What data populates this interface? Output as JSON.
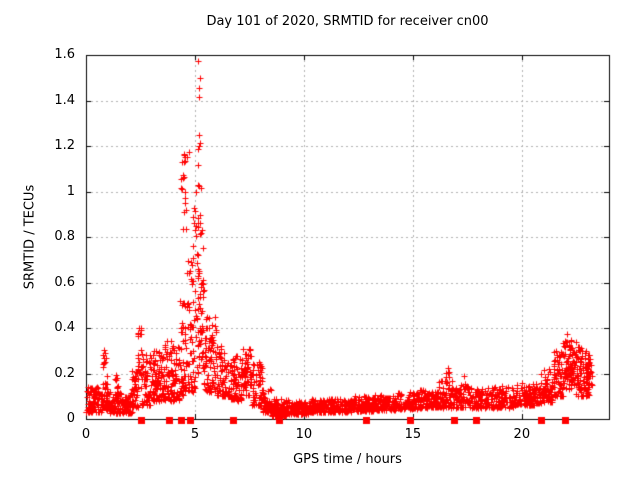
{
  "chart_data": {
    "type": "scatter",
    "title": "Day 101 of 2020, SRMTID for receiver cn00",
    "xlabel": "GPS time / hours",
    "ylabel": "SRMTID / TECUs",
    "xlim": [
      0,
      24
    ],
    "ylim": [
      0,
      1.6
    ],
    "xticks": [
      {
        "v": 0,
        "label": "0"
      },
      {
        "v": 5,
        "label": "5"
      },
      {
        "v": 10,
        "label": "10"
      },
      {
        "v": 15,
        "label": "15"
      },
      {
        "v": 20,
        "label": "20"
      }
    ],
    "yticks": [
      {
        "v": 0,
        "label": "0"
      },
      {
        "v": 0.2,
        "label": "0.2"
      },
      {
        "v": 0.4,
        "label": "0.4"
      },
      {
        "v": 0.6,
        "label": "0.6"
      },
      {
        "v": 0.8,
        "label": "0.8"
      },
      {
        "v": 1,
        "label": "1"
      },
      {
        "v": 1.2,
        "label": "1.2"
      },
      {
        "v": 1.4,
        "label": "1.4"
      },
      {
        "v": 1.6,
        "label": "1.6"
      }
    ],
    "grid": true,
    "legend": "none",
    "colors": {
      "marker": "#ff0000",
      "grid": "#b0b0b0",
      "axis": "#000000",
      "text": "#000000",
      "background": "#ffffff"
    },
    "series": [
      {
        "name": "SRMTID scatter",
        "marker": "plus",
        "marker_size": 7,
        "color": "#ff0000",
        "outlier_points": [
          [
            5.15,
            1.574
          ],
          [
            5.21,
            1.497
          ],
          [
            5.2,
            1.453
          ],
          [
            5.18,
            1.417
          ],
          [
            5.23,
            1.212
          ],
          [
            5.14,
            1.187
          ],
          [
            4.72,
            1.172
          ],
          [
            4.62,
            1.153
          ],
          [
            4.55,
            1.132
          ],
          [
            4.5,
            1.128
          ],
          [
            4.46,
            1.072
          ],
          [
            4.44,
            1.058
          ],
          [
            5.2,
            1.026
          ],
          [
            4.54,
            0.996
          ],
          [
            0.84,
            0.305
          ],
          [
            0.86,
            0.29
          ],
          [
            0.88,
            0.252
          ],
          [
            2.44,
            0.402
          ],
          [
            2.47,
            0.375
          ],
          [
            22.08,
            0.372
          ],
          [
            21.97,
            0.345
          ],
          [
            16.62,
            0.222
          ],
          [
            20.87,
            0.198
          ]
        ],
        "bands_format": "[hour_start, hour_end, y_min, y_max, point_count, bias_toward_min]",
        "bands": [
          [
            0.0,
            0.7,
            0.03,
            0.14,
            90,
            1.8
          ],
          [
            0.7,
            1.0,
            0.04,
            0.16,
            40,
            1.8
          ],
          [
            0.75,
            0.95,
            0.18,
            0.31,
            8,
            1.0
          ],
          [
            1.0,
            2.1,
            0.025,
            0.12,
            130,
            1.8
          ],
          [
            1.3,
            1.5,
            0.1,
            0.2,
            10,
            1.2
          ],
          [
            2.1,
            2.4,
            0.05,
            0.22,
            40,
            1.5
          ],
          [
            2.35,
            2.55,
            0.12,
            0.4,
            22,
            1.2
          ],
          [
            2.55,
            3.0,
            0.06,
            0.3,
            60,
            1.8
          ],
          [
            3.0,
            3.6,
            0.08,
            0.3,
            90,
            1.7
          ],
          [
            3.6,
            4.3,
            0.08,
            0.35,
            90,
            1.7
          ],
          [
            4.3,
            4.65,
            0.1,
            0.55,
            50,
            1.4
          ],
          [
            4.35,
            4.6,
            0.8,
            1.17,
            14,
            1.0
          ],
          [
            4.65,
            5.0,
            0.12,
            0.7,
            55,
            1.4
          ],
          [
            4.9,
            5.1,
            0.7,
            1.0,
            8,
            1.0
          ],
          [
            5.0,
            5.45,
            0.15,
            0.85,
            70,
            1.2
          ],
          [
            5.1,
            5.3,
            0.85,
            1.25,
            9,
            1.0
          ],
          [
            5.45,
            6.0,
            0.12,
            0.45,
            70,
            1.5
          ],
          [
            5.65,
            5.85,
            0.34,
            0.42,
            8,
            1.0
          ],
          [
            6.0,
            6.6,
            0.1,
            0.32,
            70,
            1.6
          ],
          [
            6.6,
            7.2,
            0.08,
            0.28,
            70,
            1.6
          ],
          [
            7.2,
            7.6,
            0.1,
            0.32,
            50,
            1.3
          ],
          [
            7.6,
            8.1,
            0.06,
            0.25,
            60,
            1.6
          ],
          [
            8.1,
            8.5,
            0.03,
            0.14,
            60,
            1.8
          ],
          [
            8.5,
            9.4,
            0.015,
            0.09,
            110,
            1.8
          ],
          [
            9.4,
            10.2,
            0.02,
            0.08,
            100,
            1.6
          ],
          [
            10.2,
            11.2,
            0.03,
            0.09,
            110,
            1.6
          ],
          [
            11.2,
            12.2,
            0.03,
            0.09,
            110,
            1.6
          ],
          [
            12.2,
            13.2,
            0.035,
            0.1,
            110,
            1.6
          ],
          [
            13.2,
            14.2,
            0.04,
            0.11,
            110,
            1.6
          ],
          [
            14.2,
            15.2,
            0.045,
            0.12,
            110,
            1.6
          ],
          [
            15.2,
            16.2,
            0.05,
            0.13,
            110,
            1.6
          ],
          [
            16.2,
            16.8,
            0.05,
            0.17,
            60,
            1.5
          ],
          [
            16.5,
            16.72,
            0.15,
            0.22,
            8,
            1.0
          ],
          [
            16.8,
            17.6,
            0.05,
            0.15,
            70,
            1.6
          ],
          [
            17.2,
            17.4,
            0.13,
            0.19,
            6,
            1.0
          ],
          [
            17.6,
            18.6,
            0.05,
            0.14,
            90,
            1.6
          ],
          [
            18.6,
            19.6,
            0.05,
            0.15,
            95,
            1.6
          ],
          [
            19.6,
            20.6,
            0.06,
            0.16,
            95,
            1.6
          ],
          [
            20.6,
            21.4,
            0.07,
            0.18,
            80,
            1.5
          ],
          [
            21.0,
            21.3,
            0.15,
            0.22,
            8,
            1.0
          ],
          [
            21.4,
            21.9,
            0.1,
            0.3,
            60,
            1.3
          ],
          [
            21.9,
            22.5,
            0.13,
            0.35,
            90,
            1.2
          ],
          [
            22.5,
            23.1,
            0.1,
            0.32,
            90,
            1.3
          ],
          [
            23.0,
            23.2,
            0.15,
            0.3,
            20,
            1.2
          ]
        ]
      },
      {
        "name": "event markers",
        "marker": "filled-square",
        "marker_size": 7,
        "color": "#ff0000",
        "y": 0,
        "x": [
          2.52,
          3.79,
          4.36,
          4.77,
          6.73,
          8.84,
          12.84,
          14.86,
          16.88,
          17.89,
          20.9,
          21.97
        ]
      }
    ]
  }
}
